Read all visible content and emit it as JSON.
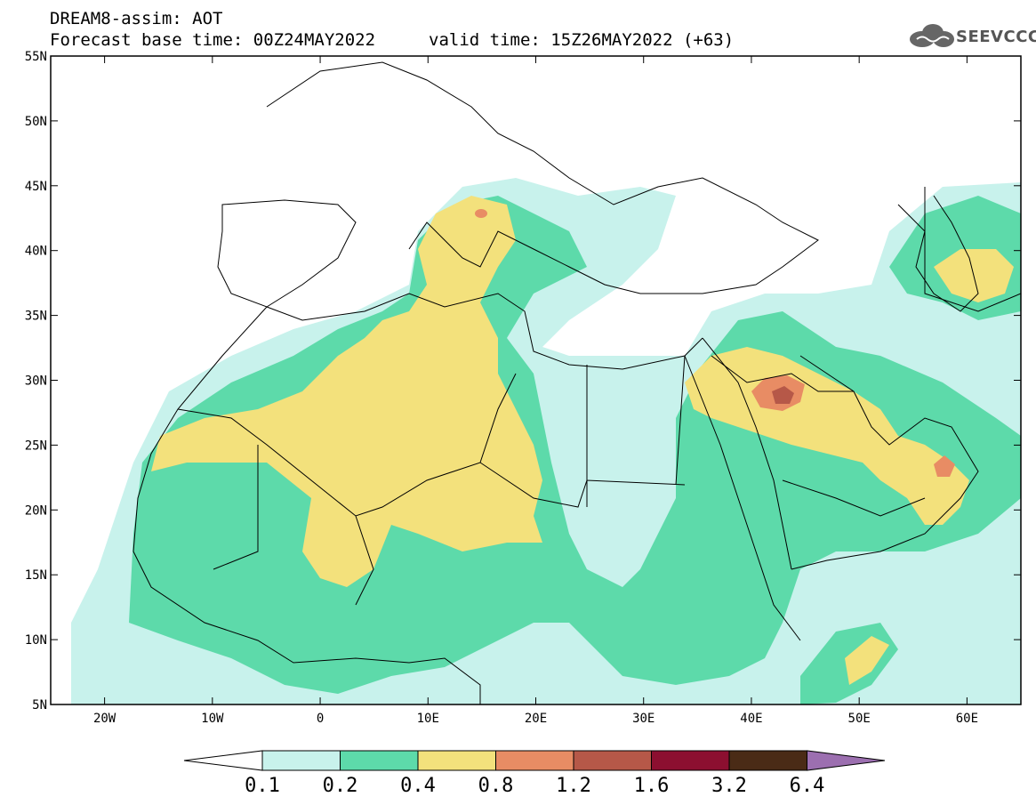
{
  "title": {
    "line1": "DREAM8-assim: AOT",
    "line2": "Forecast base time: 00Z24MAY2022",
    "valid": "valid time: 15Z26MAY2022 (+63)"
  },
  "logo": {
    "text": "SEEVCCC",
    "icon": "cloud-icon"
  },
  "axes": {
    "lon_labels": [
      "20W",
      "10W",
      "0",
      "10E",
      "20E",
      "30E",
      "40E",
      "50E",
      "60E"
    ],
    "lon_values": [
      -20,
      -10,
      0,
      10,
      20,
      30,
      40,
      50,
      60
    ],
    "lat_labels": [
      "55N",
      "50N",
      "45N",
      "40N",
      "35N",
      "30N",
      "25N",
      "20N",
      "15N",
      "10N",
      "5N"
    ],
    "lat_values": [
      55,
      50,
      45,
      40,
      35,
      30,
      25,
      20,
      15,
      10,
      5
    ],
    "lon_range": [
      -25,
      65
    ],
    "lat_range": [
      5,
      55
    ]
  },
  "colorbar": {
    "labels": [
      "0.1",
      "0.2",
      "0.4",
      "0.8",
      "1.2",
      "1.6",
      "3.2",
      "6.4"
    ],
    "colors": [
      "#c8f2ec",
      "#5ddaaa",
      "#f3e17c",
      "#e88c64",
      "#b65848",
      "#8c0f30",
      "#4a2b16"
    ],
    "under_color": "#ffffff",
    "over_color": "#9c6fb0"
  },
  "levels": {
    "l1": "#c8f2ec",
    "l2": "#5ddaaa",
    "l3": "#f3e17c",
    "l4": "#e88c64",
    "l5": "#b65848"
  }
}
